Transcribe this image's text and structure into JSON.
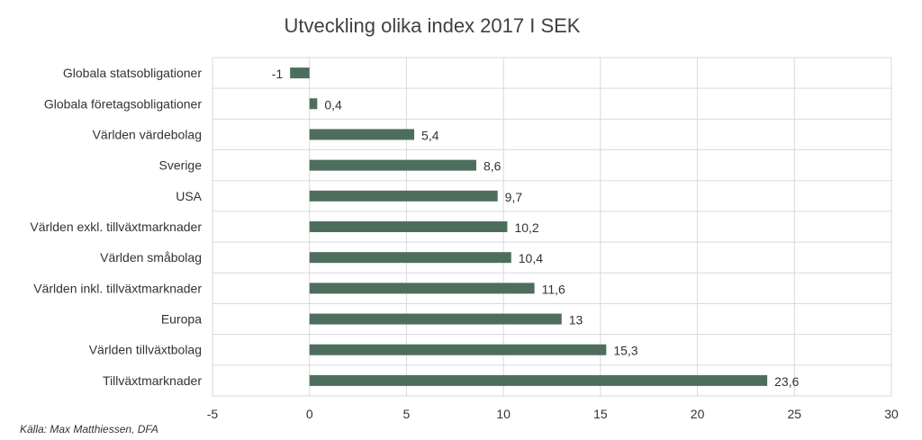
{
  "chart_data": {
    "type": "bar",
    "orientation": "horizontal",
    "title": "Utveckling olika index 2017 I SEK",
    "categories": [
      "Globala statsobligationer",
      "Globala företagsobligationer",
      "Världen värdebolag",
      "Sverige",
      "USA",
      "Världen exkl. tillväxtmarknader",
      "Världen småbolag",
      "Världen inkl. tillväxtmarknader",
      "Europa",
      "Världen tillväxtbolag",
      "Tillväxtmarknader"
    ],
    "values": [
      -1,
      0.4,
      5.4,
      8.6,
      9.7,
      10.2,
      10.4,
      11.6,
      13,
      15.3,
      23.6
    ],
    "data_labels": [
      "-1",
      "0,4",
      "5,4",
      "8,6",
      "9,7",
      "10,2",
      "10,4",
      "11,6",
      "13",
      "15,3",
      "23,6"
    ],
    "xlim": [
      -5,
      30
    ],
    "xticks": [
      -5,
      0,
      5,
      10,
      15,
      20,
      25,
      30
    ],
    "grid": true,
    "legend": "none",
    "bar_color": "#4e6e5d",
    "grid_color": "#d9d9d9"
  },
  "source": "Källa: Max Matthiessen, DFA"
}
